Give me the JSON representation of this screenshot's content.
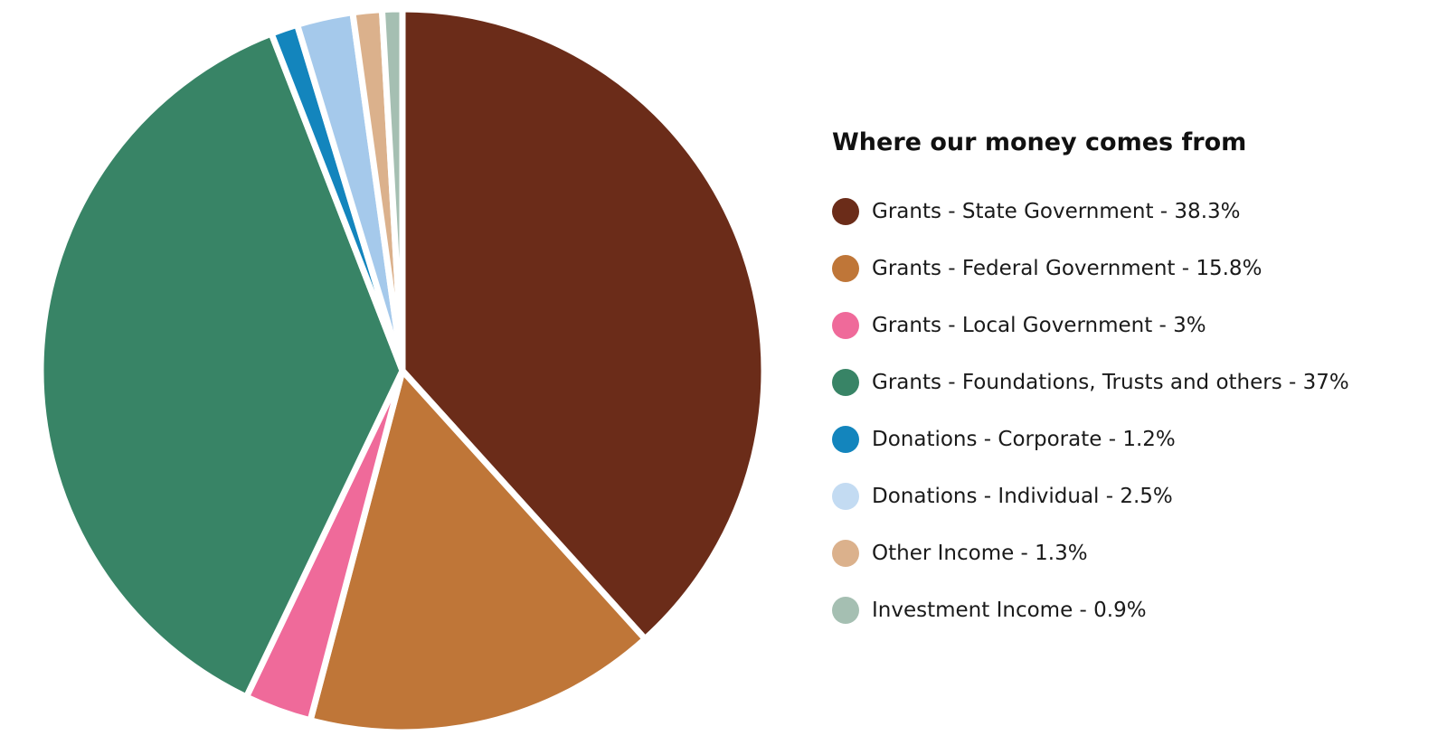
{
  "chart_data": {
    "type": "pie",
    "title": "Where our money comes from",
    "categories": [
      "Grants - State Government",
      "Grants - Federal Government",
      "Grants - Local Government",
      "Grants - Foundations, Trusts and others",
      "Donations - Corporate",
      "Donations - Individual",
      "Other Income",
      "Investment Income"
    ],
    "values": [
      38.3,
      15.8,
      3,
      37,
      1.2,
      2.5,
      1.3,
      0.9
    ],
    "legend_labels": [
      "Grants - State Government - 38.3%",
      "Grants - Federal Government - 15.8%",
      "Grants - Local Government - 3%",
      "Grants - Foundations, Trusts and others - 37%",
      "Donations - Corporate - 1.2%",
      "Donations - Individual - 2.5%",
      "Other Income - 1.3%",
      "Investment Income - 0.9%"
    ],
    "colors": [
      "#6b2c19",
      "#bf7638",
      "#ef6a9a",
      "#388466",
      "#1385bd",
      "#a5c9eb",
      "#dbb18c",
      "#a5bfb2"
    ],
    "legend_swatch_colors": [
      "#6b2c19",
      "#bf7638",
      "#ef6a9a",
      "#388466",
      "#1385bd",
      "#c3dbf2",
      "#dbb18c",
      "#a5bfb2"
    ],
    "legend_position": "right",
    "start_angle": "top",
    "direction": "clockwise"
  }
}
